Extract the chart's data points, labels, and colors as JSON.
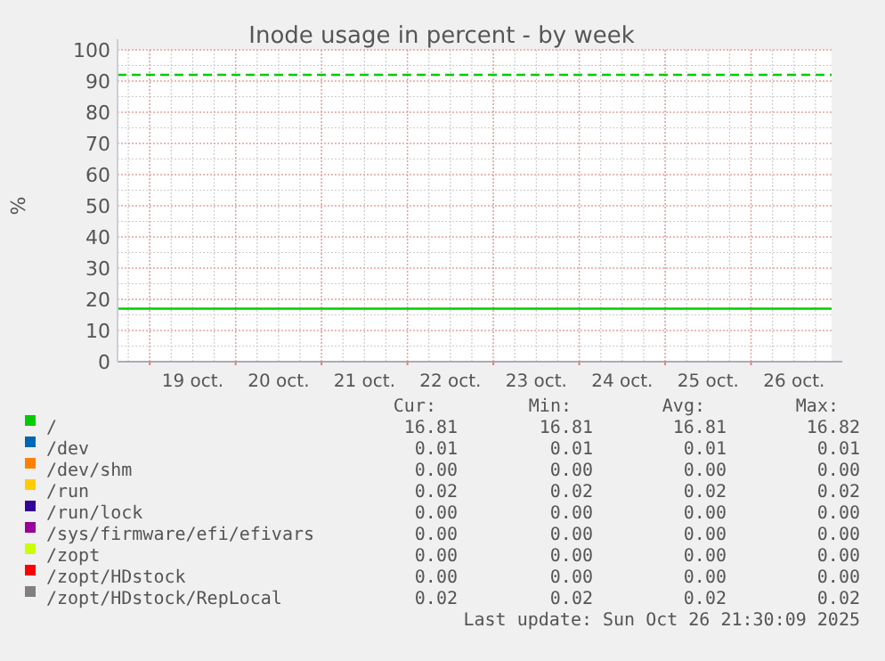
{
  "chart_data": {
    "type": "line",
    "title": "Inode usage in percent - by week",
    "ylabel": "%",
    "x": [
      "2025-10-18T15:00",
      "2025-10-26T22:30"
    ],
    "xlim": [
      "2025-10-18T15:00",
      "2025-10-26T22:30"
    ],
    "xticks": [
      {
        "value": "2025-10-19T00:00",
        "label": null
      },
      {
        "value": "2025-10-19T12:00",
        "label": "19 oct."
      },
      {
        "value": "2025-10-20T00:00",
        "label": null
      },
      {
        "value": "2025-10-20T12:00",
        "label": "20 oct."
      },
      {
        "value": "2025-10-21T00:00",
        "label": null
      },
      {
        "value": "2025-10-21T12:00",
        "label": "21 oct."
      },
      {
        "value": "2025-10-22T00:00",
        "label": null
      },
      {
        "value": "2025-10-22T12:00",
        "label": "22 oct."
      },
      {
        "value": "2025-10-23T00:00",
        "label": null
      },
      {
        "value": "2025-10-23T12:00",
        "label": "23 oct."
      },
      {
        "value": "2025-10-24T00:00",
        "label": null
      },
      {
        "value": "2025-10-24T12:00",
        "label": "24 oct."
      },
      {
        "value": "2025-10-25T00:00",
        "label": null
      },
      {
        "value": "2025-10-25T12:00",
        "label": "25 oct."
      },
      {
        "value": "2025-10-26T00:00",
        "label": null
      },
      {
        "value": "2025-10-26T12:00",
        "label": "26 oct."
      }
    ],
    "ylim": [
      0,
      100
    ],
    "yticks": [
      0,
      10,
      20,
      30,
      40,
      50,
      60,
      70,
      80,
      90,
      100
    ],
    "grid": true,
    "legend": "bottom",
    "line_style": "solid",
    "series": [
      {
        "name": "/",
        "color": "#00cc00",
        "values": [
          17,
          17
        ]
      },
      {
        "name": "/dev",
        "color": "#0066b3",
        "values": [
          null,
          null
        ]
      },
      {
        "name": "/dev/shm",
        "color": "#ff8000",
        "values": [
          null,
          null
        ]
      },
      {
        "name": "/run",
        "color": "#ffcc00",
        "values": [
          null,
          null
        ]
      },
      {
        "name": "/run/lock",
        "color": "#330099",
        "values": [
          null,
          null
        ]
      },
      {
        "name": "/sys/firmware/efi/efivars",
        "color": "#990099",
        "values": [
          null,
          null
        ]
      },
      {
        "name": "/zopt",
        "color": "#ccff00",
        "values": [
          null,
          null
        ]
      },
      {
        "name": "/zopt/HDstock",
        "color": "#ff0000",
        "values": [
          null,
          null
        ]
      },
      {
        "name": "/zopt/HDstock/RepLocal",
        "color": "#808080",
        "values": [
          null,
          null
        ]
      }
    ],
    "ref_lines": [
      {
        "axis": "y",
        "value": 92,
        "color": "#00cc00",
        "line_style": "dashed"
      }
    ],
    "annotations": [
      "Cur:",
      "Min:",
      "Avg:",
      "Max:",
      "16.81",
      "16.81",
      "16.81",
      "16.82",
      "0.01",
      "0.01",
      "0.01",
      "0.01",
      "0.00",
      "0.00",
      "0.00",
      "0.00",
      "0.02",
      "0.02",
      "0.02",
      "0.02",
      "0.00",
      "0.00",
      "0.00",
      "0.00",
      "0.00",
      "0.00",
      "0.00",
      "0.00",
      "0.00",
      "0.00",
      "0.00",
      "0.00",
      "0.00",
      "0.00",
      "0.00",
      "0.00",
      "0.02",
      "0.02",
      "0.02",
      "0.02",
      "Last update: Sun Oct 26 21:30:09 2025"
    ]
  }
}
